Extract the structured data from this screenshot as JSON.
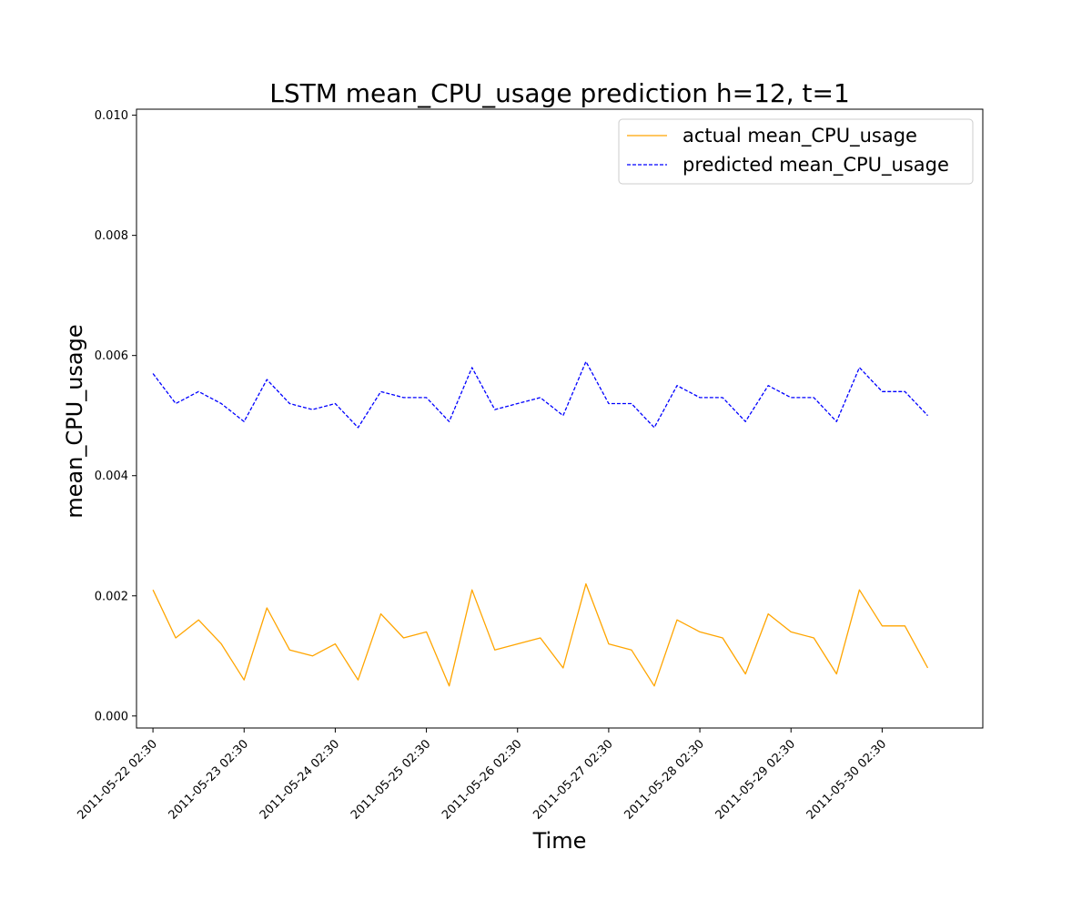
{
  "chart_data": {
    "type": "line",
    "title": "LSTM mean_CPU_usage prediction h=12, t=1",
    "xlabel": "Time",
    "ylabel": "mean_CPU_usage",
    "xlim": [
      "2011-05-21 22:10",
      "2011-05-31 05:00"
    ],
    "ylim": [
      -0.0002,
      0.0101
    ],
    "x_ticks": [
      "2011-05-22 02:30",
      "2011-05-23 02:30",
      "2011-05-24 02:30",
      "2011-05-25 02:30",
      "2011-05-26 02:30",
      "2011-05-27 02:30",
      "2011-05-28 02:30",
      "2011-05-29 02:30",
      "2011-05-30 02:30"
    ],
    "y_ticks": [
      "0.000",
      "0.002",
      "0.004",
      "0.006",
      "0.008",
      "0.010"
    ],
    "grid": false,
    "legend": "top-right",
    "x": [
      "2011-05-22 02:30",
      "2011-05-22 08:30",
      "2011-05-22 14:30",
      "2011-05-22 20:30",
      "2011-05-23 02:30",
      "2011-05-23 08:30",
      "2011-05-23 14:30",
      "2011-05-23 20:30",
      "2011-05-24 02:30",
      "2011-05-24 08:30",
      "2011-05-24 14:30",
      "2011-05-24 20:30",
      "2011-05-25 02:30",
      "2011-05-25 08:30",
      "2011-05-25 14:30",
      "2011-05-25 20:30",
      "2011-05-26 02:30",
      "2011-05-26 08:30",
      "2011-05-26 14:30",
      "2011-05-26 20:30",
      "2011-05-27 02:30",
      "2011-05-27 08:30",
      "2011-05-27 14:30",
      "2011-05-27 20:30",
      "2011-05-28 02:30",
      "2011-05-28 08:30",
      "2011-05-28 14:30",
      "2011-05-28 20:30",
      "2011-05-29 02:30",
      "2011-05-29 08:30",
      "2011-05-29 14:30",
      "2011-05-29 20:30",
      "2011-05-30 02:30",
      "2011-05-30 08:30",
      "2011-05-30 14:30"
    ],
    "series": [
      {
        "name": "actual mean_CPU_usage",
        "color": "#ffa500",
        "style": "solid",
        "values": [
          0.0021,
          0.0013,
          0.0016,
          0.0012,
          0.0006,
          0.0018,
          0.0011,
          0.001,
          0.0012,
          0.0006,
          0.0017,
          0.0013,
          0.0014,
          0.0005,
          0.0021,
          0.0011,
          0.0012,
          0.0013,
          0.0008,
          0.0022,
          0.0012,
          0.0011,
          0.0005,
          0.0016,
          0.0014,
          0.0013,
          0.0007,
          0.0017,
          0.0014,
          0.0013,
          0.0007,
          0.0021,
          0.0015,
          0.0015,
          0.0008
        ]
      },
      {
        "name": "predicted mean_CPU_usage",
        "color": "#0000ff",
        "style": "dashed",
        "values": [
          0.0057,
          0.0052,
          0.0054,
          0.0052,
          0.0049,
          0.0056,
          0.0052,
          0.0051,
          0.0052,
          0.0048,
          0.0054,
          0.0053,
          0.0053,
          0.0049,
          0.0058,
          0.0051,
          0.0052,
          0.0053,
          0.005,
          0.0059,
          0.0052,
          0.0052,
          0.0048,
          0.0055,
          0.0053,
          0.0053,
          0.0049,
          0.0055,
          0.0053,
          0.0053,
          0.0049,
          0.0058,
          0.0054,
          0.0054,
          0.005
        ]
      }
    ]
  }
}
